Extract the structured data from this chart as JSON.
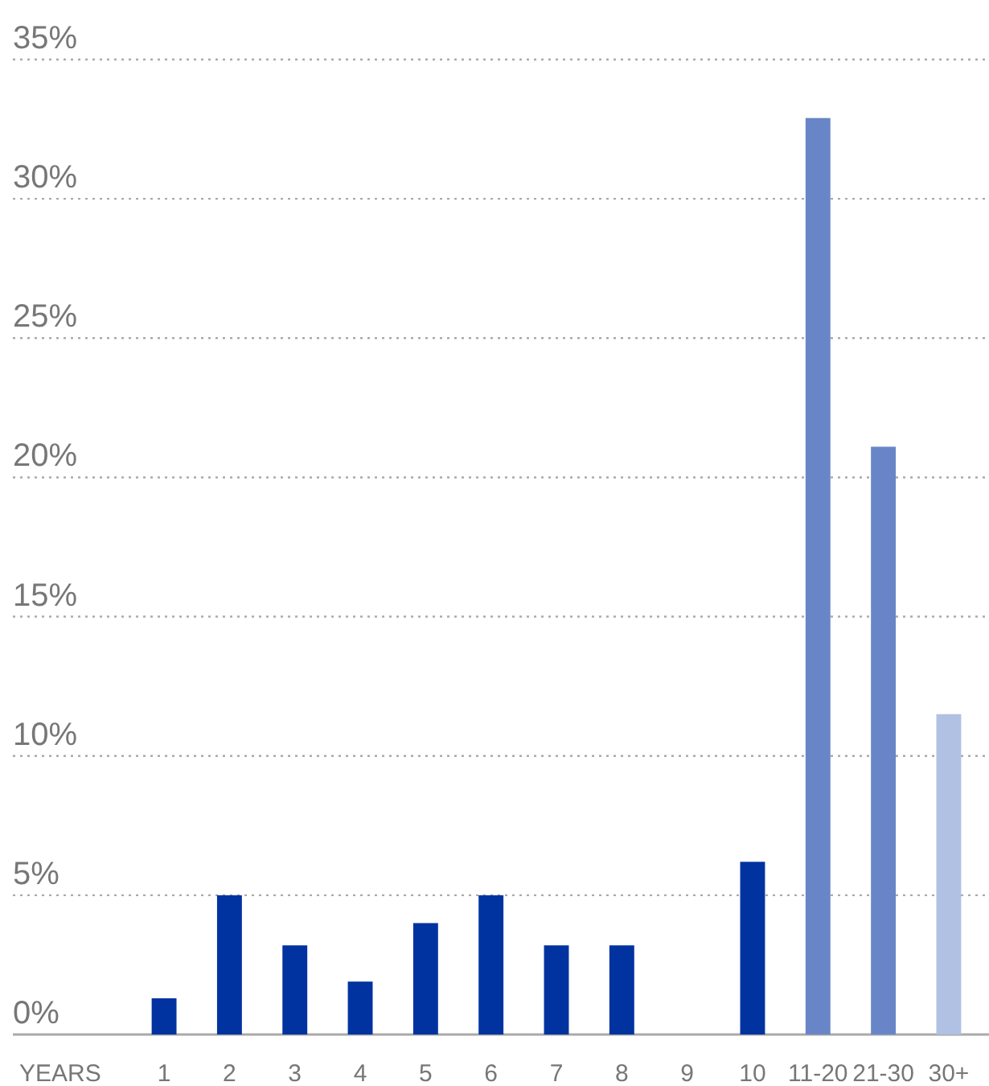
{
  "chart_data": {
    "type": "bar",
    "xlabel": "YEARS",
    "categories": [
      "1",
      "2",
      "3",
      "4",
      "5",
      "6",
      "7",
      "8",
      "9",
      "10",
      "11-20",
      "21-30",
      "30+"
    ],
    "values": [
      1.3,
      5.0,
      3.2,
      1.9,
      4.0,
      5.0,
      3.2,
      3.2,
      0,
      6.2,
      32.9,
      21.1,
      11.5
    ],
    "colors": [
      "#0033a0",
      "#0033a0",
      "#0033a0",
      "#0033a0",
      "#0033a0",
      "#0033a0",
      "#0033a0",
      "#0033a0",
      "#0033a0",
      "#0033a0",
      "#6886c7",
      "#6886c7",
      "#b1c1e3"
    ],
    "ylim": [
      0,
      35
    ],
    "yticks": [
      {
        "value": 0,
        "label": "0%"
      },
      {
        "value": 5,
        "label": "5%"
      },
      {
        "value": 10,
        "label": "10%"
      },
      {
        "value": 15,
        "label": "15%"
      },
      {
        "value": 20,
        "label": "20%"
      },
      {
        "value": 25,
        "label": "25%"
      },
      {
        "value": 30,
        "label": "30%"
      },
      {
        "value": 35,
        "label": "35%"
      }
    ],
    "grid": "y"
  }
}
